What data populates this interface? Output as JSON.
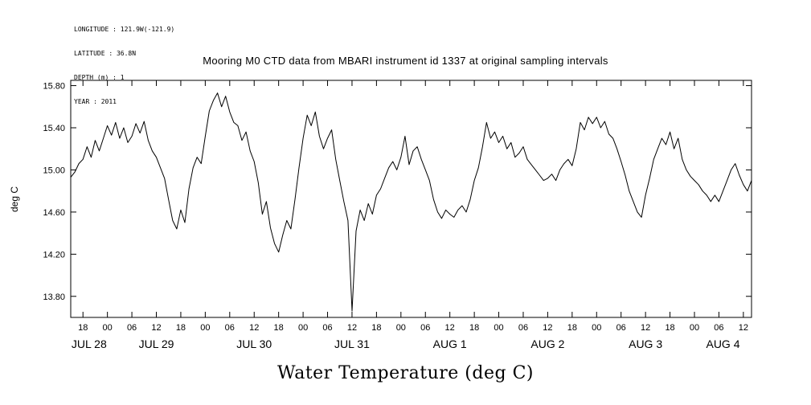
{
  "meta": {
    "longitude": "LONGITUDE : 121.9W(-121.9)",
    "latitude": "LATITUDE : 36.8N",
    "depth": "DEPTH (m) : 1",
    "year": "YEAR : 2011"
  },
  "title": "Mooring M0 CTD data from MBARI instrument id 1337 at original sampling intervals",
  "y_axis_label": "deg C",
  "bottom_axis_title": "Water Temperature (deg C)",
  "colors": {
    "line": "#000000",
    "axis": "#000000",
    "background": "#ffffff"
  },
  "chart_data": {
    "type": "line",
    "title": "Mooring M0 CTD data from MBARI instrument id 1337 at original sampling intervals",
    "xlabel": "Water Temperature (deg C)",
    "ylabel": "deg C",
    "grid": false,
    "legend": "none",
    "x_domain_hours": [
      15,
      182
    ],
    "ylim": [
      13.6,
      15.85
    ],
    "y_ticks": [
      13.8,
      14.2,
      14.6,
      15.0,
      15.4,
      15.8
    ],
    "x_ticks": {
      "start_hour": 18,
      "end_hour": 180,
      "step_hours": 6,
      "labels_cycle": [
        "00",
        "06",
        "12",
        "18"
      ]
    },
    "day_labels": [
      {
        "label": "JUL 28",
        "t": 19.5
      },
      {
        "label": "JUL 29",
        "t": 36
      },
      {
        "label": "JUL 30",
        "t": 60
      },
      {
        "label": "JUL 31",
        "t": 84
      },
      {
        "label": "AUG 1",
        "t": 108
      },
      {
        "label": "AUG 2",
        "t": 132
      },
      {
        "label": "AUG 3",
        "t": 156
      },
      {
        "label": "AUG 4",
        "t": 175
      }
    ],
    "series": [
      {
        "name": "water_temperature_degC",
        "x_start_hour": 15,
        "x_step_hours": 1,
        "values": [
          14.93,
          14.98,
          15.06,
          15.1,
          15.22,
          15.12,
          15.28,
          15.18,
          15.3,
          15.42,
          15.33,
          15.45,
          15.3,
          15.4,
          15.26,
          15.32,
          15.44,
          15.35,
          15.46,
          15.28,
          15.18,
          15.12,
          15.02,
          14.92,
          14.72,
          14.52,
          14.44,
          14.62,
          14.5,
          14.82,
          15.02,
          15.12,
          15.06,
          15.32,
          15.56,
          15.66,
          15.73,
          15.6,
          15.7,
          15.55,
          15.45,
          15.42,
          15.28,
          15.36,
          15.18,
          15.08,
          14.88,
          14.58,
          14.7,
          14.45,
          14.3,
          14.22,
          14.38,
          14.52,
          14.44,
          14.72,
          15.02,
          15.3,
          15.52,
          15.42,
          15.55,
          15.32,
          15.2,
          15.3,
          15.38,
          15.1,
          14.9,
          14.7,
          14.52,
          13.66,
          14.42,
          14.62,
          14.52,
          14.68,
          14.58,
          14.76,
          14.82,
          14.92,
          15.02,
          15.08,
          15.0,
          15.12,
          15.32,
          15.05,
          15.18,
          15.22,
          15.1,
          15.0,
          14.9,
          14.72,
          14.6,
          14.54,
          14.62,
          14.58,
          14.55,
          14.62,
          14.66,
          14.6,
          14.72,
          14.9,
          15.02,
          15.22,
          15.45,
          15.3,
          15.36,
          15.26,
          15.32,
          15.2,
          15.26,
          15.12,
          15.16,
          15.22,
          15.1,
          15.05,
          15.0,
          14.95,
          14.9,
          14.92,
          14.96,
          14.9,
          15.0,
          15.06,
          15.1,
          15.04,
          15.2,
          15.45,
          15.38,
          15.5,
          15.44,
          15.5,
          15.4,
          15.46,
          15.34,
          15.3,
          15.2,
          15.08,
          14.95,
          14.8,
          14.7,
          14.6,
          14.55,
          14.76,
          14.92,
          15.1,
          15.2,
          15.3,
          15.24,
          15.36,
          15.2,
          15.3,
          15.1,
          15.0,
          14.94,
          14.9,
          14.86,
          14.8,
          14.76,
          14.7,
          14.76,
          14.7,
          14.8,
          14.9,
          15.0,
          15.06,
          14.95,
          14.86,
          14.8,
          14.9
        ]
      }
    ]
  }
}
